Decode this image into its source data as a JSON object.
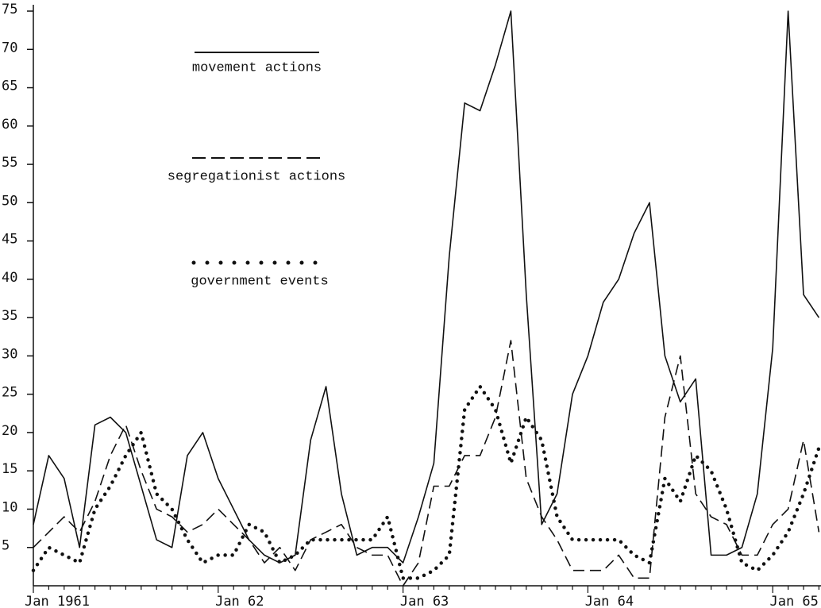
{
  "chart_data": {
    "type": "line",
    "categories": [
      "Jan 1961",
      null,
      null,
      null,
      null,
      null,
      null,
      null,
      null,
      null,
      null,
      null,
      "Jan 62",
      null,
      null,
      null,
      null,
      null,
      null,
      null,
      null,
      null,
      null,
      null,
      "Jan 63",
      null,
      null,
      null,
      null,
      null,
      null,
      null,
      null,
      null,
      null,
      null,
      "Jan 64",
      null,
      null,
      null,
      null,
      null,
      null,
      null,
      null,
      null,
      null,
      null,
      "Jan 65",
      null,
      null,
      null
    ],
    "ylim": [
      0,
      75
    ],
    "yticks": [
      5,
      10,
      15,
      20,
      25,
      30,
      35,
      40,
      45,
      50,
      55,
      60,
      65,
      70,
      75
    ],
    "series": [
      {
        "name": "movement actions",
        "color": "#111111",
        "dash": "solid",
        "values": [
          8,
          17,
          14,
          5,
          21,
          22,
          20,
          13,
          6,
          5,
          17,
          20,
          14,
          10,
          6,
          4,
          3,
          4,
          19,
          26,
          12,
          4,
          5,
          5,
          3,
          9,
          16,
          43,
          63,
          62,
          68,
          75,
          38,
          8,
          12,
          25,
          30,
          37,
          40,
          46,
          50,
          30,
          24,
          27,
          4,
          4,
          5,
          12,
          31,
          75,
          38,
          35
        ]
      },
      {
        "name": "segregationist actions",
        "color": "#111111",
        "dash": "dashed",
        "values": [
          5,
          7,
          9,
          7,
          11,
          17,
          21,
          15,
          10,
          9,
          7,
          8,
          10,
          8,
          6,
          3,
          5,
          2,
          6,
          7,
          8,
          5,
          4,
          4,
          0,
          3,
          13,
          13,
          17,
          17,
          22,
          32,
          14,
          9,
          6,
          2,
          2,
          2,
          4,
          1,
          1,
          22,
          30,
          12,
          9,
          8,
          4,
          4,
          8,
          10,
          19,
          7
        ]
      },
      {
        "name": "government events",
        "color": "#111111",
        "dash": "dotted",
        "values": [
          2,
          5,
          4,
          3,
          10,
          13,
          17,
          20,
          12,
          10,
          6,
          3,
          4,
          4,
          8,
          7,
          3,
          4,
          6,
          6,
          6,
          6,
          6,
          9,
          1,
          1,
          2,
          4,
          23,
          26,
          23,
          16,
          22,
          19,
          9,
          6,
          6,
          6,
          6,
          4,
          3,
          14,
          11,
          17,
          15,
          10,
          3,
          2,
          4,
          7,
          12,
          18
        ]
      }
    ]
  }
}
